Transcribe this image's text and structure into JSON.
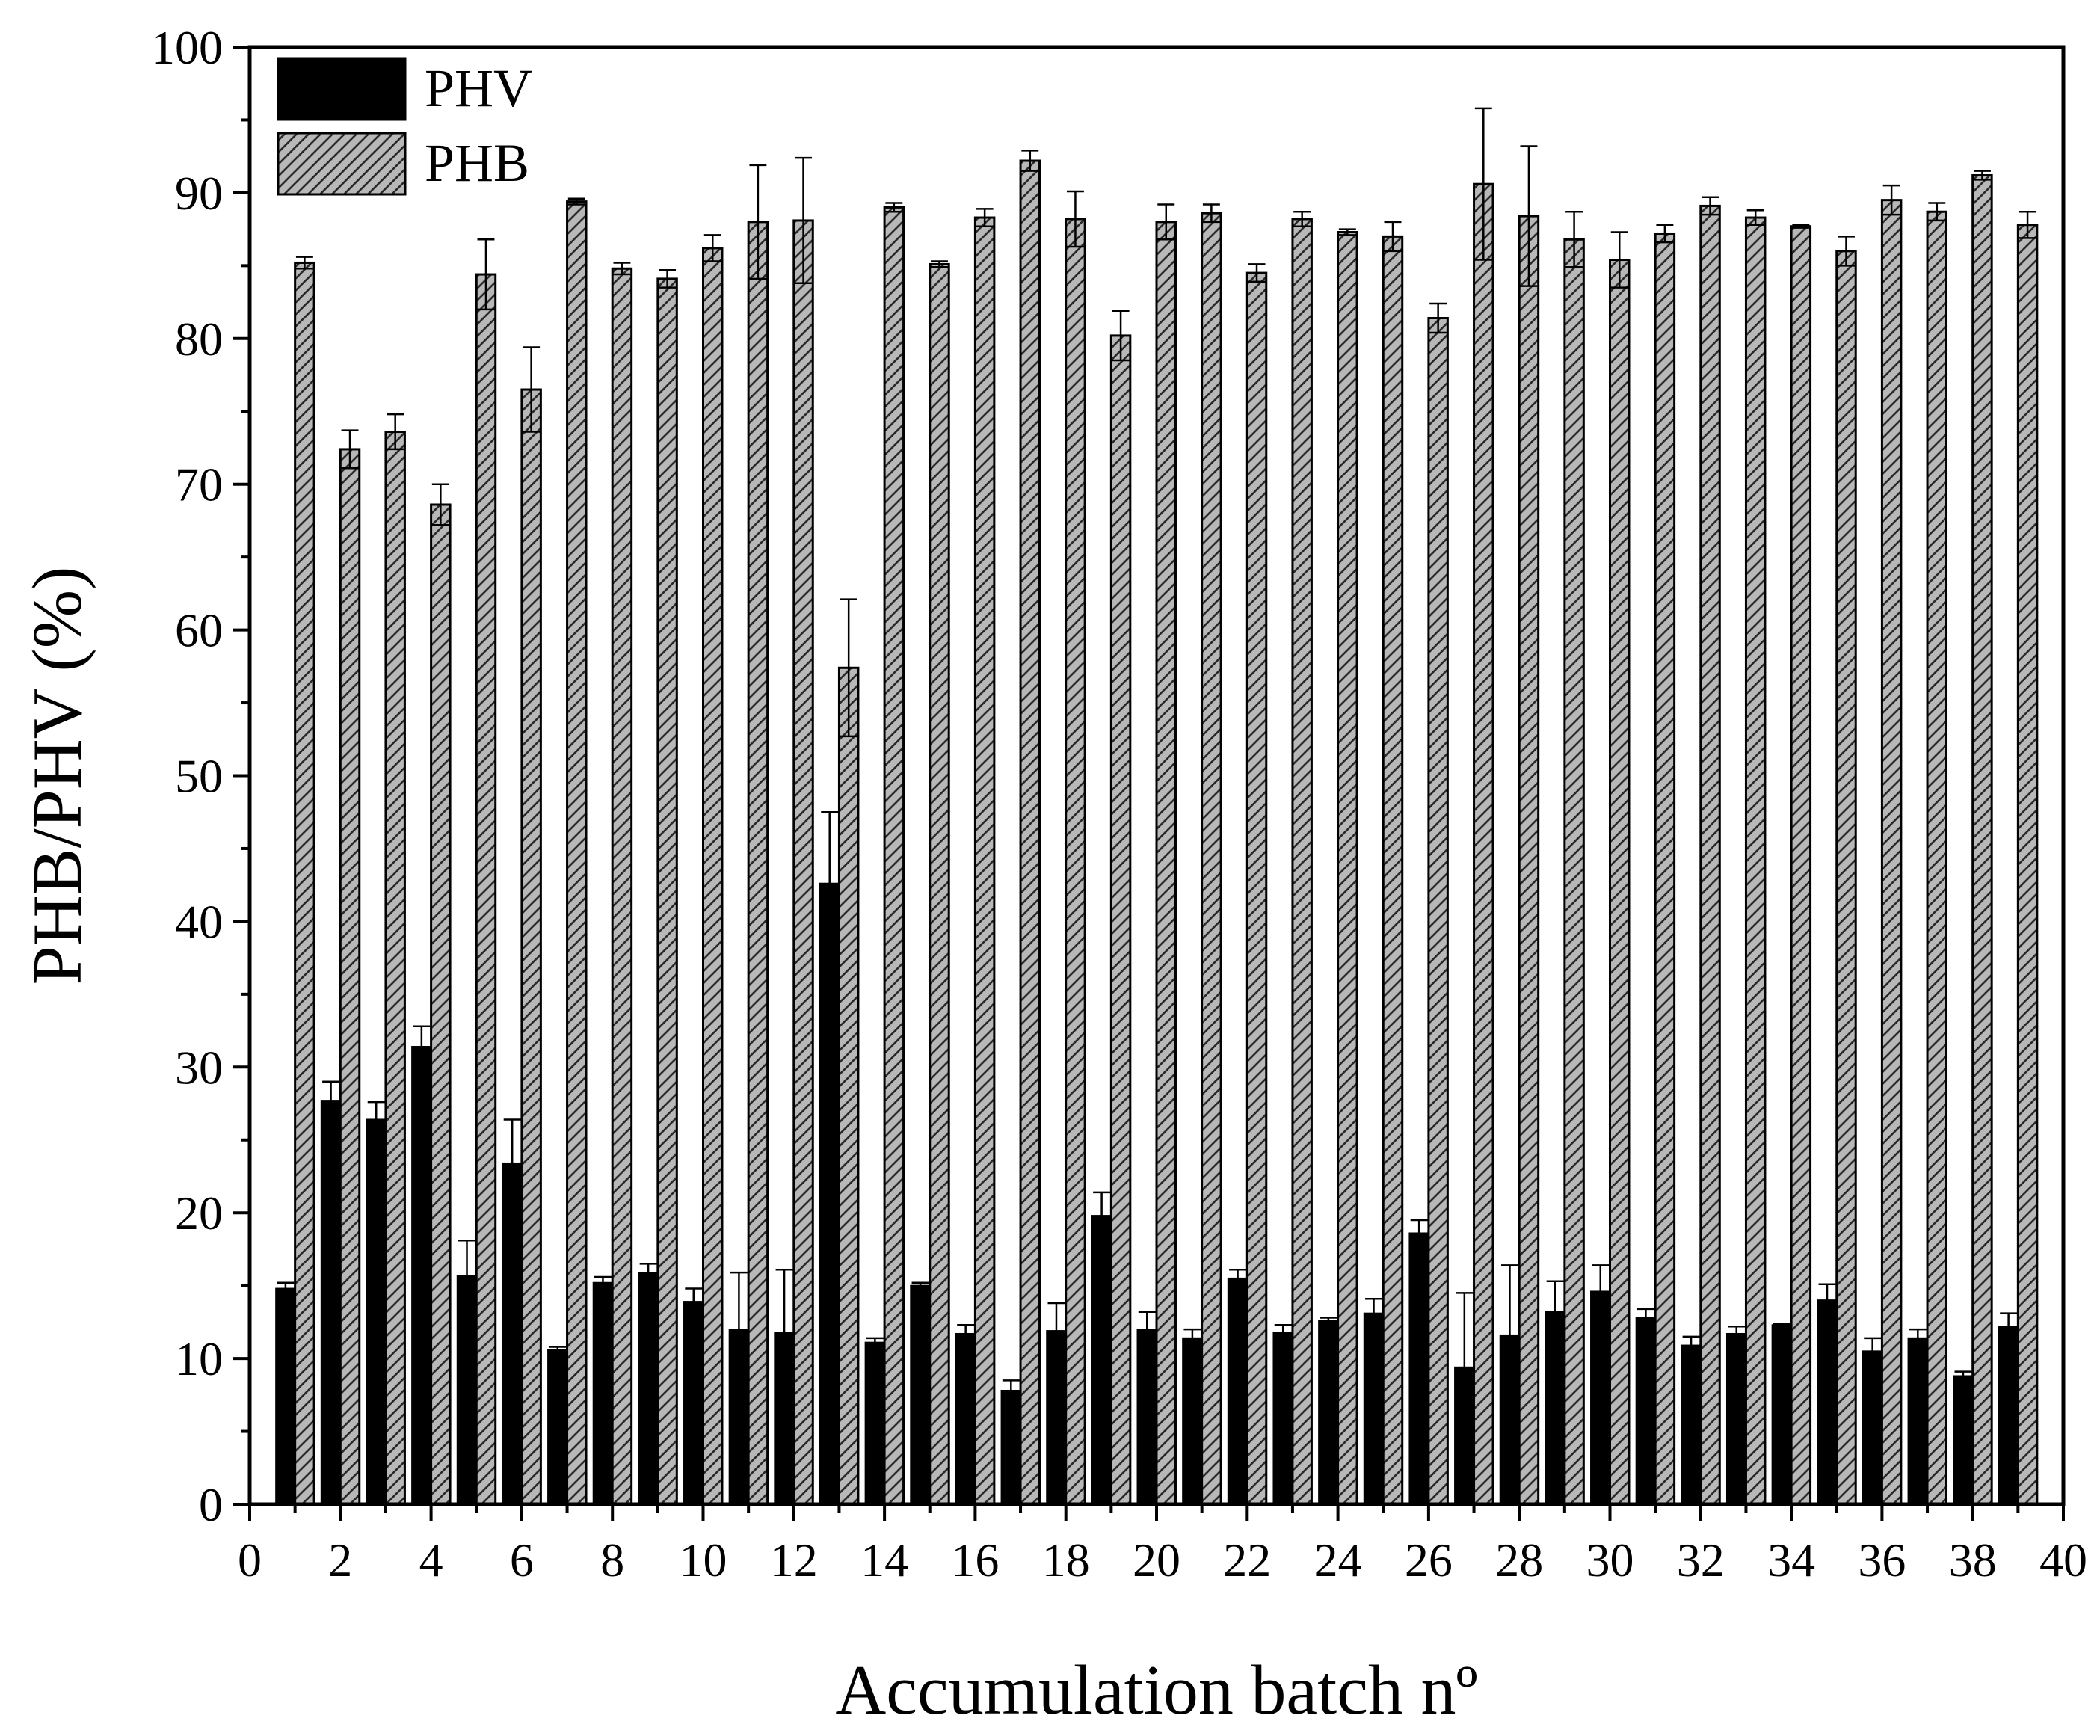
{
  "chart_data": {
    "type": "bar",
    "title": "",
    "xlabel": "Accumulation batch nº",
    "ylabel": "PHB/PHV (%)",
    "xlim": [
      0,
      40
    ],
    "ylim": [
      0,
      100
    ],
    "x_ticks": [
      0,
      2,
      4,
      6,
      8,
      10,
      12,
      14,
      16,
      18,
      20,
      22,
      24,
      26,
      28,
      30,
      32,
      34,
      36,
      38,
      40
    ],
    "y_ticks": [
      0,
      10,
      20,
      30,
      40,
      50,
      60,
      70,
      80,
      90,
      100
    ],
    "legend_position": "top-left",
    "categories": [
      1,
      2,
      3,
      4,
      5,
      6,
      7,
      8,
      9,
      10,
      11,
      12,
      13,
      14,
      15,
      16,
      17,
      18,
      19,
      20,
      21,
      22,
      23,
      24,
      25,
      26,
      27,
      28,
      29,
      30,
      31,
      32,
      33,
      34,
      35,
      36,
      37,
      38,
      39
    ],
    "series": [
      {
        "name": "PHV",
        "color": "#000000",
        "pattern": "solid",
        "values": [
          14.8,
          27.7,
          26.4,
          31.4,
          15.7,
          23.4,
          10.6,
          15.2,
          15.9,
          13.9,
          12.0,
          11.8,
          42.6,
          11.1,
          15.0,
          11.7,
          7.8,
          11.9,
          19.8,
          12.0,
          11.4,
          15.5,
          11.8,
          12.6,
          13.1,
          18.6,
          9.4,
          11.6,
          13.2,
          14.6,
          12.8,
          10.9,
          11.7,
          12.3,
          14.0,
          10.5,
          11.4,
          8.8,
          12.2
        ],
        "errors": [
          0.4,
          1.3,
          1.2,
          1.4,
          2.4,
          3.0,
          0.2,
          0.4,
          0.6,
          0.9,
          3.9,
          4.3,
          4.9,
          0.3,
          0.2,
          0.6,
          0.7,
          1.9,
          1.6,
          1.2,
          0.6,
          0.6,
          0.5,
          0.2,
          1.0,
          0.9,
          5.1,
          4.8,
          2.1,
          1.8,
          0.6,
          0.6,
          0.5,
          0.1,
          1.1,
          0.9,
          0.6,
          0.3,
          0.9
        ]
      },
      {
        "name": "PHB",
        "color": "#b8b8b8",
        "pattern": "hatched",
        "values": [
          85.2,
          72.4,
          73.6,
          68.6,
          84.4,
          76.5,
          89.4,
          84.8,
          84.1,
          86.2,
          88.0,
          88.1,
          57.4,
          89.0,
          85.1,
          88.3,
          92.2,
          88.2,
          80.2,
          88.0,
          88.6,
          84.5,
          88.2,
          87.3,
          87.0,
          81.4,
          90.6,
          88.4,
          86.8,
          85.4,
          87.2,
          89.1,
          88.3,
          87.7,
          86.0,
          89.5,
          88.7,
          91.2,
          87.8
        ],
        "errors": [
          0.4,
          1.3,
          1.2,
          1.4,
          2.4,
          2.9,
          0.2,
          0.4,
          0.6,
          0.9,
          3.9,
          4.3,
          4.7,
          0.3,
          0.2,
          0.6,
          0.7,
          1.9,
          1.7,
          1.2,
          0.6,
          0.6,
          0.5,
          0.2,
          1.0,
          1.0,
          5.2,
          4.8,
          1.9,
          1.9,
          0.6,
          0.6,
          0.5,
          0.1,
          1.0,
          1.0,
          0.6,
          0.3,
          0.9
        ]
      }
    ]
  }
}
